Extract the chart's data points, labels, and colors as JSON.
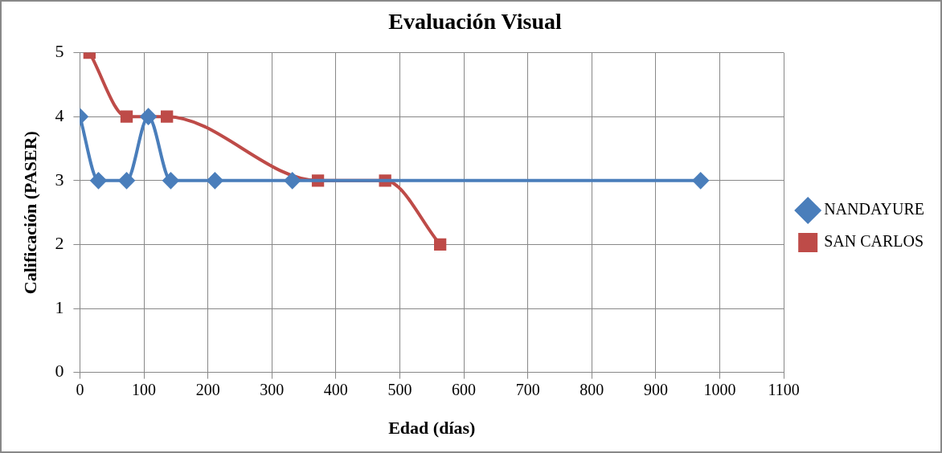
{
  "chart_data": {
    "type": "line",
    "title": "Evaluación Visual",
    "xlabel": "Edad (días)",
    "ylabel": "Calificación (PASER)",
    "series": [
      {
        "name": "NANDAYURE",
        "color": "#4a7ebb",
        "marker": "diamond",
        "x": [
          0,
          29,
          73,
          107,
          142,
          211,
          332,
          970
        ],
        "values": [
          4,
          3,
          3,
          4,
          3,
          3,
          3,
          3
        ]
      },
      {
        "name": "SAN CARLOS",
        "color": "#be4b48",
        "marker": "square",
        "x": [
          15,
          73,
          136,
          372,
          477,
          563
        ],
        "values": [
          5,
          4,
          4,
          3,
          3,
          2
        ]
      }
    ],
    "xlim": [
      0,
      1100
    ],
    "xticks": [
      0,
      100,
      200,
      300,
      400,
      500,
      600,
      700,
      800,
      900,
      1000,
      1100
    ],
    "ylim": [
      0,
      5
    ],
    "yticks": [
      0,
      1,
      2,
      3,
      4,
      5
    ],
    "grid": true,
    "legend": "right"
  }
}
